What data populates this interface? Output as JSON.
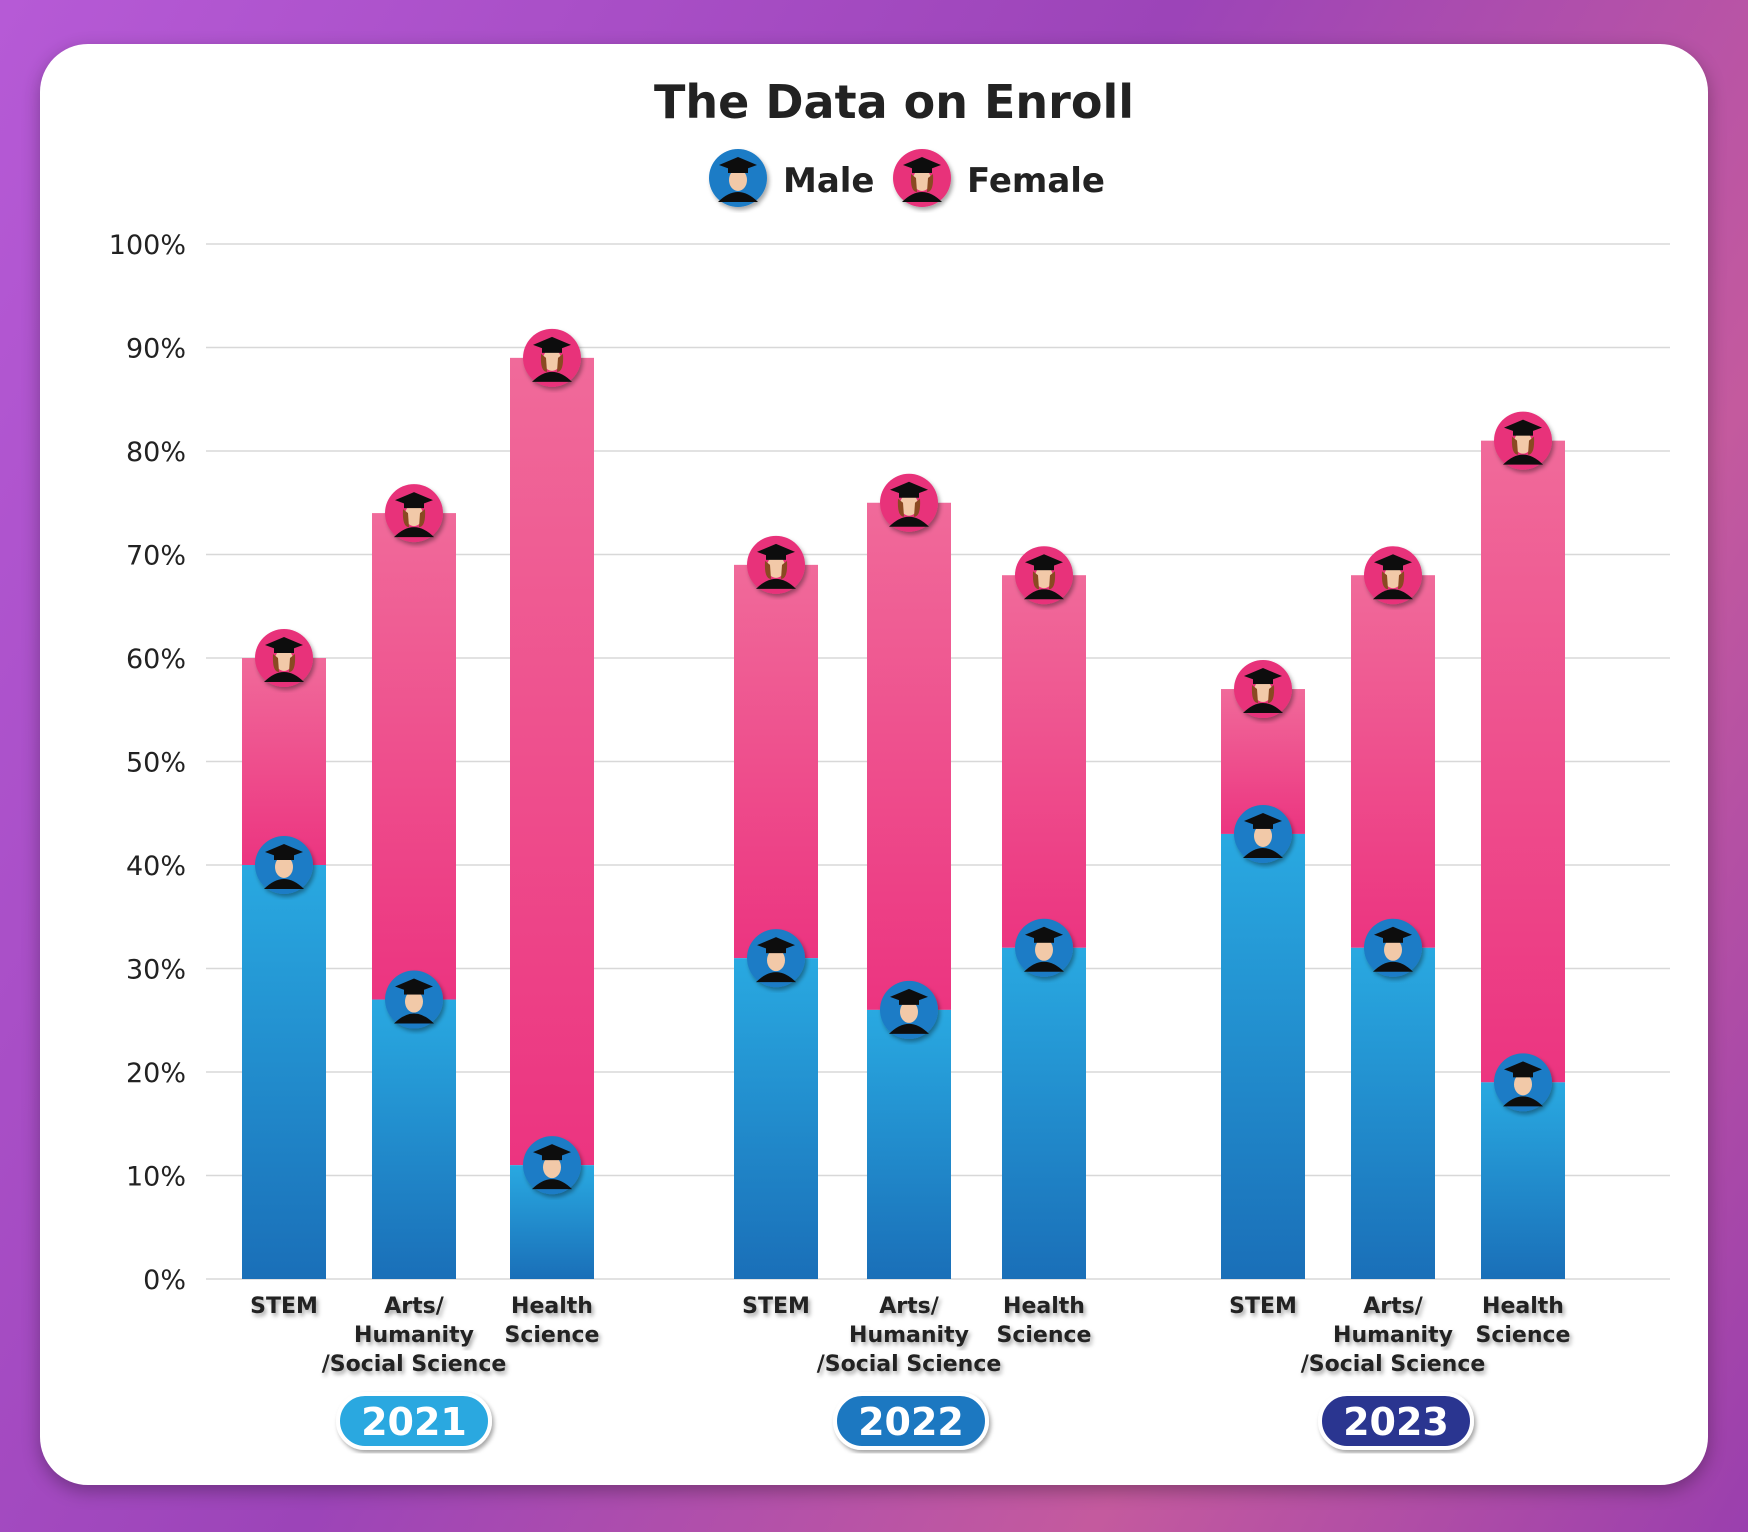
{
  "chart_data": {
    "type": "bar",
    "stacked": true,
    "title": "The Data on Enroll",
    "legend": [
      {
        "name": "Male",
        "color": "#1e88d0",
        "icon": "male-graduate-icon"
      },
      {
        "name": "Female",
        "color": "#ec3f82",
        "icon": "female-graduate-icon"
      }
    ],
    "legend_placement": "top-center",
    "ylim": [
      0,
      100
    ],
    "yticks": [
      "0%",
      "10%",
      "20%",
      "30%",
      "40%",
      "50%",
      "60%",
      "70%",
      "80%",
      "90%",
      "100%"
    ],
    "grid": true,
    "groups": [
      {
        "year": "2021",
        "color": "#29a8e0",
        "categories": [
          {
            "label": [
              "STEM"
            ],
            "male": 40,
            "female": 20
          },
          {
            "label": [
              "Arts/",
              "Humanity",
              "/Social Science"
            ],
            "male": 27,
            "female": 47
          },
          {
            "label": [
              "Health",
              "Science"
            ],
            "male": 11,
            "female": 78
          }
        ]
      },
      {
        "year": "2022",
        "color": "#1f78c1",
        "categories": [
          {
            "label": [
              "STEM"
            ],
            "male": 31,
            "female": 38
          },
          {
            "label": [
              "Arts/",
              "Humanity",
              "/Social Science"
            ],
            "male": 26,
            "female": 49
          },
          {
            "label": [
              "Health",
              "Science"
            ],
            "male": 32,
            "female": 36
          }
        ]
      },
      {
        "year": "2023",
        "color": "#2b3590",
        "categories": [
          {
            "label": [
              "STEM"
            ],
            "male": 43,
            "female": 14
          },
          {
            "label": [
              "Arts/",
              "Humanity",
              "/Social Science"
            ],
            "male": 32,
            "female": 36
          },
          {
            "label": [
              "Health",
              "Science"
            ],
            "male": 19,
            "female": 62
          }
        ]
      }
    ]
  }
}
